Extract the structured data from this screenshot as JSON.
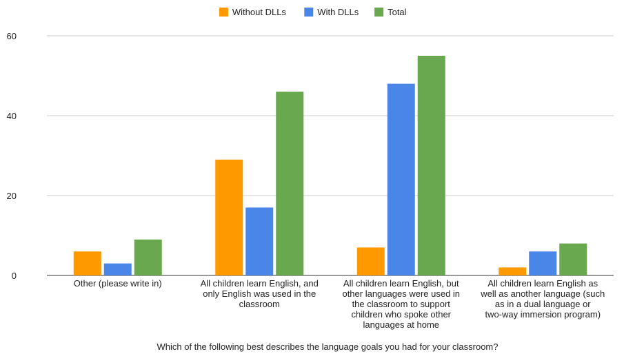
{
  "chart_data": {
    "type": "bar",
    "title": "",
    "xlabel": "Which of the following best describes the language goals you had for your classroom?",
    "ylabel": "",
    "ylim": [
      0,
      60
    ],
    "yticks": [
      0,
      20,
      40,
      60
    ],
    "grid": true,
    "legend_position": "top-center",
    "categories": [
      [
        "Other (please write in)"
      ],
      [
        "All children learn English, and",
        "only English was used in the",
        "classroom"
      ],
      [
        "All children learn English, but",
        "other languages were used in",
        "the classroom to support",
        "children who spoke other",
        "languages at home"
      ],
      [
        "All children learn English as",
        "well as another language (such",
        "as in a dual language or",
        "two-way immersion program)"
      ]
    ],
    "series": [
      {
        "name": "Without DLLs",
        "color": "#ff9900",
        "values": [
          6,
          29,
          7,
          2
        ]
      },
      {
        "name": "With DLLs",
        "color": "#4a86e8",
        "values": [
          3,
          17,
          48,
          6
        ]
      },
      {
        "name": "Total",
        "color": "#6aa84f",
        "values": [
          9,
          46,
          55,
          8
        ]
      }
    ]
  }
}
